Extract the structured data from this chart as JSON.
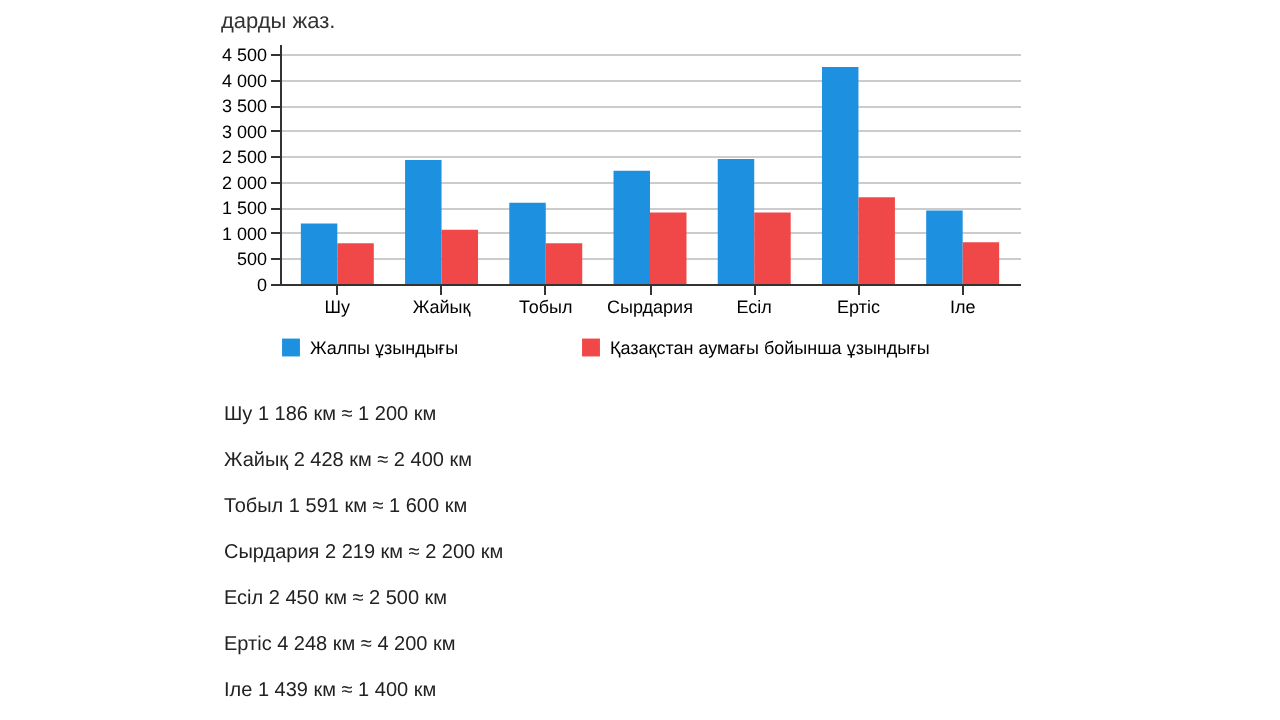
{
  "chart_data": {
    "type": "bar",
    "title": "дарды жаз.",
    "categories": [
      "Шу",
      "Жайық",
      "Тобыл",
      "Сырдария",
      "Есіл",
      "Ертіс",
      "Іле"
    ],
    "series": [
      {
        "name": "Жалпы ұзындығы",
        "color": "#1e90e0",
        "values": [
          1186,
          2428,
          1591,
          2219,
          2450,
          4248,
          1439
        ]
      },
      {
        "name": "Қазақстан аумағы бойынша ұзындығы",
        "color": "#f04848",
        "values": [
          800,
          1060,
          800,
          1400,
          1400,
          1700,
          820
        ]
      }
    ],
    "ylim": [
      0,
      4700
    ],
    "yticks": [
      {
        "value": 0,
        "label": "0"
      },
      {
        "value": 500,
        "label": "500"
      },
      {
        "value": 1000,
        "label": "1 000"
      },
      {
        "value": 1500,
        "label": "1 500"
      },
      {
        "value": 2000,
        "label": "2 000"
      },
      {
        "value": 2500,
        "label": "2 500"
      },
      {
        "value": 3000,
        "label": "3 000"
      },
      {
        "value": 3500,
        "label": "3 500"
      },
      {
        "value": 4000,
        "label": "4 000"
      },
      {
        "value": 4500,
        "label": "4 500"
      }
    ],
    "grid": "y",
    "legend": "bottom",
    "annotations": [
      "Шу 1 186 км ≈ 1 200 км",
      "Жайық 2 428 км ≈ 2 400 км",
      "Тобыл 1 591 км ≈ 1 600 км",
      "Сырдария 2 219 км ≈ 2 200 км",
      "Есіл 2 450 км ≈ 2 500 км",
      "Ертіс 4 248 км ≈ 4 200 км",
      "Іле 1 439 км ≈ 1 400 км"
    ]
  }
}
